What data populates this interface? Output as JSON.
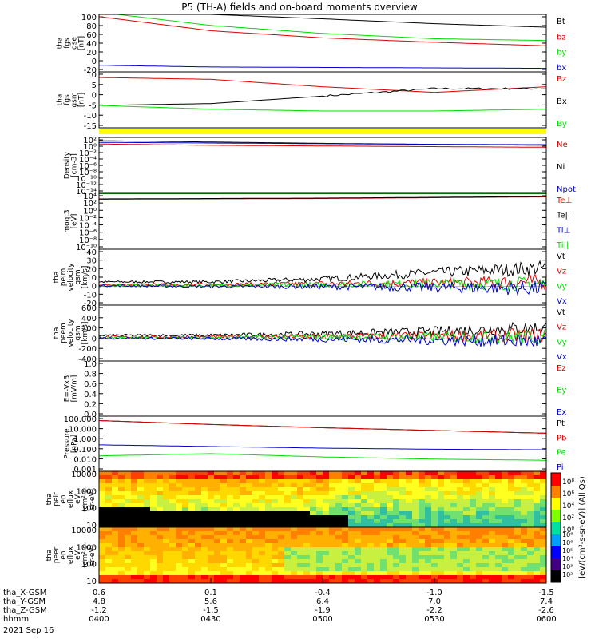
{
  "title": "P5 (TH-A) fields and on-board moments overview",
  "date_label": "2021 Sep 16",
  "colors": {
    "black": "#000000",
    "red": "#dd0000",
    "green": "#00dd00",
    "blue": "#0000cc",
    "yellow": "#ffff00"
  },
  "panels": [
    {
      "id": "fgs-gse",
      "ylabel": [
        "tha",
        "fgs",
        "gse",
        "[nT]"
      ],
      "yticks": [
        "100",
        "80",
        "60",
        "40",
        "20",
        "0",
        "-20"
      ],
      "legend": [
        {
          "text": "Bt",
          "color": "black"
        },
        {
          "text": "bz",
          "color": "red"
        },
        {
          "text": "by",
          "color": "green"
        },
        {
          "text": "bx",
          "color": "blue"
        }
      ]
    },
    {
      "id": "fgs-gsm",
      "ylabel": [
        "tha",
        "fgs",
        "gsm",
        "[nT]"
      ],
      "yticks": [
        "10",
        "5",
        "0",
        "-5",
        "-10",
        "-15"
      ],
      "legend": [
        {
          "text": "Bz",
          "color": "red"
        },
        {
          "text": "Bx",
          "color": "black"
        },
        {
          "text": "By",
          "color": "green"
        }
      ]
    },
    {
      "id": "density",
      "ylabel": [
        "Density",
        "[cm-3]"
      ],
      "yticks": [
        "10²",
        "10⁰",
        "10⁻²",
        "10⁻⁴",
        "10⁻⁶",
        "10⁻⁸",
        "10⁻¹⁰",
        "10⁻¹²",
        "10⁻¹⁴"
      ],
      "legend": [
        {
          "text": "Ne",
          "color": "red"
        },
        {
          "text": "Ni",
          "color": "black"
        },
        {
          "text": "Npot",
          "color": "blue"
        }
      ]
    },
    {
      "id": "temp",
      "ylabel": [
        "moqt3",
        "[eV]"
      ],
      "yticks": [
        "10⁴",
        "10²",
        "10⁰",
        "10⁻²",
        "10⁻⁴",
        "10⁻⁶",
        "10⁻⁸",
        "10⁻¹⁰"
      ],
      "legend": [
        {
          "text": "Te⊥",
          "color": "red"
        },
        {
          "text": "Te||",
          "color": "black"
        },
        {
          "text": "Ti⊥",
          "color": "blue"
        },
        {
          "text": "Ti||",
          "color": "green"
        }
      ]
    },
    {
      "id": "peim-vel",
      "ylabel": [
        "tha",
        "peim",
        "velocity",
        "gsm",
        "[km/s]"
      ],
      "yticks": [
        "40",
        "30",
        "20",
        "10",
        "0",
        "-10",
        "-20"
      ],
      "legend": [
        {
          "text": "Vt",
          "color": "black"
        },
        {
          "text": "Vz",
          "color": "red"
        },
        {
          "text": "Vy",
          "color": "green"
        },
        {
          "text": "Vx",
          "color": "blue"
        }
      ]
    },
    {
      "id": "peem-vel",
      "ylabel": [
        "tha",
        "peem",
        "velocity",
        "gsm",
        "[km/s]"
      ],
      "yticks": [
        "600",
        "400",
        "200",
        "0",
        "-200",
        "-400"
      ],
      "legend": [
        {
          "text": "Vt",
          "color": "black"
        },
        {
          "text": "Vz",
          "color": "red"
        },
        {
          "text": "Vy",
          "color": "green"
        },
        {
          "text": "Vx",
          "color": "blue"
        }
      ]
    },
    {
      "id": "efield",
      "ylabel": [
        "E=-VxB",
        "[mV/m]"
      ],
      "yticks": [
        "1.0",
        "0.8",
        "0.6",
        "0.4",
        "0.2",
        "0.0"
      ],
      "legend": [
        {
          "text": "Ez",
          "color": "red"
        },
        {
          "text": "Ey",
          "color": "green"
        },
        {
          "text": "Ex",
          "color": "blue"
        }
      ]
    },
    {
      "id": "pressure",
      "ylabel": [
        "Pressure",
        "[nPa]"
      ],
      "yticks": [
        "100.000",
        "10.000",
        "1.000",
        "0.100",
        "0.010",
        "0.001"
      ],
      "legend": [
        {
          "text": "Pt",
          "color": "black"
        },
        {
          "text": "Pb",
          "color": "red"
        },
        {
          "text": "Pe",
          "color": "green"
        },
        {
          "text": "Pi",
          "color": "blue"
        }
      ]
    },
    {
      "id": "peir",
      "ylabel": [
        "tha",
        "peir",
        "en",
        "eflux",
        "eV",
        "(cm²-s-",
        "sr-eV)"
      ],
      "yticks": [
        "10000",
        "1000",
        "100",
        "10"
      ],
      "legend": []
    },
    {
      "id": "peer",
      "ylabel": [
        "tha",
        "peer",
        "en",
        "eflux",
        "eV",
        "(cm²-s-",
        "sr-eV)"
      ],
      "yticks": [
        "10000",
        "1000",
        "100",
        "10"
      ],
      "legend": []
    }
  ],
  "colorbar": {
    "label": "[eV/(cm²-s-sr-eV)] (All Qs)",
    "ticks_top": [
      "10⁸",
      "10⁶",
      "10⁴",
      "10²",
      "10⁰"
    ],
    "ticks_bottom": [
      "10⁸",
      "10⁶",
      "10⁵",
      "10⁴",
      "10³",
      "10²"
    ]
  },
  "xaxis": {
    "rows": [
      {
        "label": "tha_X-GSM",
        "values": [
          "0.6",
          "0.1",
          "-0.4",
          "-1.0",
          "-1.5"
        ]
      },
      {
        "label": "tha_Y-GSM",
        "values": [
          "4.8",
          "5.6",
          "6.4",
          "7.0",
          "7.4"
        ]
      },
      {
        "label": "tha_Z-GSM",
        "values": [
          "-1.2",
          "-1.5",
          "-1.9",
          "-2.2",
          "-2.6"
        ]
      },
      {
        "label": "hhmm",
        "values": [
          "0400",
          "0430",
          "0500",
          "0530",
          "0600"
        ]
      }
    ]
  },
  "chart_data": [
    {
      "type": "line",
      "name": "fgs gse",
      "x": [
        "0400",
        "0430",
        "0500",
        "0530",
        "0600"
      ],
      "ylim": [
        -25,
        105
      ],
      "series": [
        {
          "name": "Bt",
          "color": "black",
          "values": [
            120,
            105,
            95,
            84,
            76
          ]
        },
        {
          "name": "bz",
          "color": "red",
          "values": [
            100,
            68,
            52,
            42,
            34
          ]
        },
        {
          "name": "by",
          "color": "green",
          "values": [
            110,
            80,
            62,
            50,
            46
          ]
        },
        {
          "name": "bx",
          "color": "blue",
          "values": [
            -10,
            -14,
            -15,
            -16,
            -17
          ]
        }
      ]
    },
    {
      "type": "line",
      "name": "fgs gsm",
      "x": [
        "0400",
        "0430",
        "0500",
        "0530",
        "0600"
      ],
      "ylim": [
        -18,
        12
      ],
      "series": [
        {
          "name": "Bz",
          "color": "red",
          "values": [
            9,
            8,
            4,
            1,
            4
          ]
        },
        {
          "name": "Bx",
          "color": "black",
          "values": [
            -6,
            -5,
            -1,
            3,
            3
          ]
        },
        {
          "name": "By",
          "color": "green",
          "values": [
            -6,
            -8,
            -9,
            -9,
            -8
          ]
        }
      ]
    },
    {
      "type": "line",
      "name": "density",
      "x": [
        "0400",
        "0430",
        "0500",
        "0530",
        "0600"
      ],
      "ylim_log10": [
        -14,
        3
      ],
      "series": [
        {
          "name": "Ne",
          "color": "red",
          "values_log10": [
            1.0,
            0.6,
            0.4,
            0.2,
            0.0
          ]
        },
        {
          "name": "Ni",
          "color": "black",
          "values_log10": [
            2.0,
            1.6,
            1.2,
            0.9,
            0.6
          ]
        },
        {
          "name": "Npot",
          "color": "blue",
          "values_log10": [
            1.5,
            1.3,
            1.1,
            0.9,
            0.8
          ]
        }
      ]
    },
    {
      "type": "line",
      "name": "moqt3",
      "x": [
        "0400",
        "0430",
        "0500",
        "0530",
        "0600"
      ],
      "ylim_log10": [
        -10,
        4
      ],
      "series": [
        {
          "name": "Te⊥",
          "color": "red",
          "values_log10": [
            2.5,
            2.6,
            2.7,
            2.9,
            3.1
          ]
        },
        {
          "name": "Te||",
          "color": "black",
          "values_log10": [
            2.6,
            2.7,
            2.8,
            3.0,
            3.2
          ]
        },
        {
          "name": "Ti⊥",
          "color": "blue",
          "values_log10": [
            3.9,
            3.9,
            3.9,
            3.9,
            3.9
          ]
        },
        {
          "name": "Ti||",
          "color": "green",
          "values_log10": [
            3.9,
            3.9,
            3.9,
            3.9,
            3.9
          ]
        }
      ]
    },
    {
      "type": "line",
      "name": "peim velocity",
      "x": [
        "0400",
        "0430",
        "0500",
        "0530",
        "0600"
      ],
      "ylim": [
        -20,
        40
      ],
      "series": [
        {
          "name": "Vt",
          "color": "black",
          "values": [
            5,
            5,
            8,
            15,
            20
          ]
        },
        {
          "name": "Vz",
          "color": "red",
          "values": [
            2,
            2,
            3,
            4,
            5
          ]
        },
        {
          "name": "Vy",
          "color": "green",
          "values": [
            1,
            1,
            2,
            3,
            3
          ]
        },
        {
          "name": "Vx",
          "color": "blue",
          "values": [
            1,
            0,
            0,
            -1,
            -2
          ]
        }
      ]
    },
    {
      "type": "line",
      "name": "peem velocity",
      "x": [
        "0400",
        "0430",
        "0500",
        "0530",
        "0600"
      ],
      "ylim": [
        -400,
        600
      ],
      "series": [
        {
          "name": "Vt",
          "color": "black",
          "values": [
            60,
            60,
            90,
            130,
            200
          ]
        },
        {
          "name": "Vz",
          "color": "red",
          "values": [
            30,
            30,
            40,
            50,
            60
          ]
        },
        {
          "name": "Vy",
          "color": "green",
          "values": [
            20,
            20,
            30,
            30,
            30
          ]
        },
        {
          "name": "Vx",
          "color": "blue",
          "values": [
            10,
            0,
            -10,
            -30,
            -50
          ]
        }
      ]
    },
    {
      "type": "line",
      "name": "E=-VxB",
      "x": [
        "0400",
        "0430",
        "0500",
        "0530",
        "0600"
      ],
      "ylim": [
        0,
        1
      ],
      "series": []
    },
    {
      "type": "line",
      "name": "pressure",
      "x": [
        "0400",
        "0430",
        "0500",
        "0530",
        "0600"
      ],
      "ylim_log10": [
        -3,
        2
      ],
      "series": [
        {
          "name": "Pt",
          "color": "black",
          "values_log10": [
            1.6,
            1.25,
            0.95,
            0.7,
            0.45
          ]
        },
        {
          "name": "Pb",
          "color": "red",
          "values_log10": [
            1.6,
            1.25,
            0.95,
            0.7,
            0.45
          ]
        },
        {
          "name": "Pe",
          "color": "green",
          "values_log10": [
            -1.6,
            -1.4,
            -1.7,
            -1.9,
            -2.0
          ]
        },
        {
          "name": "Pi",
          "color": "blue",
          "values_log10": [
            -0.6,
            -0.75,
            -0.9,
            -1.0,
            -1.05
          ]
        }
      ]
    },
    {
      "type": "heatmap",
      "name": "peir",
      "x": [
        "0400",
        "0430",
        "0500",
        "0530",
        "0600"
      ],
      "ylim": [
        5,
        20000
      ]
    },
    {
      "type": "heatmap",
      "name": "peer",
      "x": [
        "0400",
        "0430",
        "0500",
        "0530",
        "0600"
      ],
      "ylim": [
        5,
        20000
      ]
    }
  ]
}
